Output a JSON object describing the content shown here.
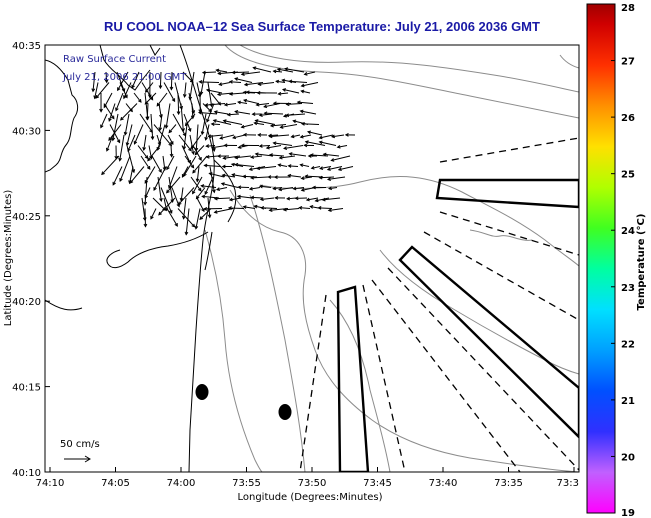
{
  "title": "RU COOL  NOAA–12  Sea Surface Temperature:  July 21, 2006 2036 GMT",
  "annotation": {
    "line1": "Raw Surface Current",
    "line2": "July 21, 2006 21:00 GMT"
  },
  "scale_label": "50 cm/s",
  "chart_data": {
    "type": "map",
    "xlabel": "Longitude (Degrees:Minutes)",
    "ylabel": "Latitude (Degrees:Minutes)",
    "x_ticks": [
      "74:10",
      "74:05",
      "74:00",
      "73:55",
      "73:50",
      "73:45",
      "73:40",
      "73:35",
      "73:3"
    ],
    "y_ticks": [
      "40:35",
      "40:30",
      "40:25",
      "40:20",
      "40:15",
      "40:10"
    ],
    "colorbar": {
      "label": "Temperature (°C)",
      "ticks": [
        "28",
        "27",
        "26",
        "25",
        "24",
        "23",
        "22",
        "21",
        "20",
        "19"
      ],
      "range": [
        19,
        28
      ]
    }
  }
}
